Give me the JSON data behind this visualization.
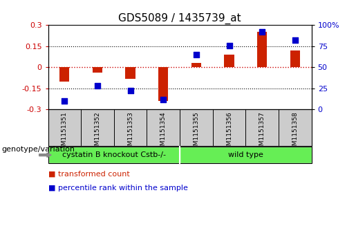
{
  "title": "GDS5089 / 1435739_at",
  "samples": [
    "GSM1151351",
    "GSM1151352",
    "GSM1151353",
    "GSM1151354",
    "GSM1151355",
    "GSM1151356",
    "GSM1151357",
    "GSM1151358"
  ],
  "transformed_count": [
    -0.1,
    -0.04,
    -0.08,
    -0.24,
    0.03,
    0.09,
    0.25,
    0.12
  ],
  "percentile_rank": [
    10,
    28,
    22,
    12,
    65,
    76,
    92,
    82
  ],
  "group1_label": "cystatin B knockout Cstb-/-",
  "group2_label": "wild type",
  "group1_count": 4,
  "group2_count": 4,
  "group_color": "#66ee55",
  "bar_color": "#cc2200",
  "dot_color": "#0000cc",
  "ylim_left": [
    -0.3,
    0.3
  ],
  "ylim_right": [
    0,
    100
  ],
  "yticks_left": [
    -0.3,
    -0.15,
    0,
    0.15,
    0.3
  ],
  "yticks_right": [
    0,
    25,
    50,
    75,
    100
  ],
  "hline_color": "#cc0000",
  "dot_label": "percentile rank within the sample",
  "bar_label": "transformed count",
  "genotype_label": "genotype/variation",
  "background_color": "#ffffff",
  "sample_bg_color": "#cccccc",
  "title_fontsize": 11,
  "tick_fontsize": 8,
  "sample_fontsize": 6.5,
  "legend_fontsize": 8,
  "geno_fontsize": 8
}
